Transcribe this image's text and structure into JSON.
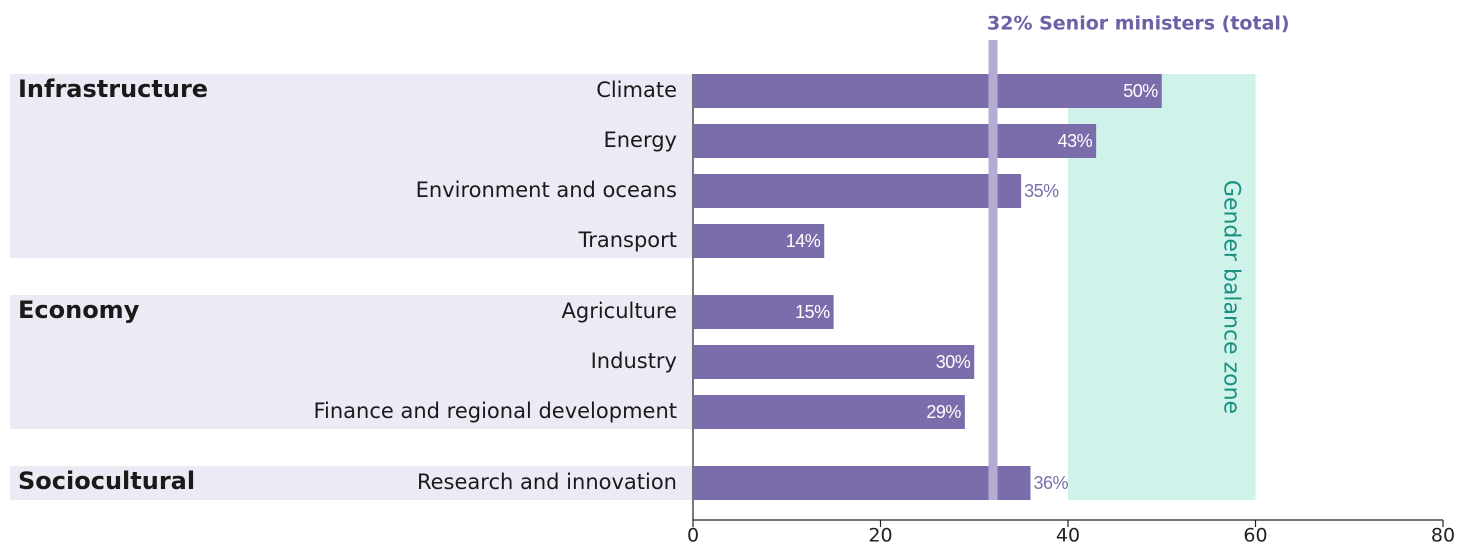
{
  "chart_data": {
    "type": "bar",
    "orientation": "horizontal",
    "color": "#7b6dab",
    "groups": [
      {
        "name": "Infrastructure",
        "categories": [
          "Climate",
          "Energy",
          "Environment and oceans",
          "Transport"
        ],
        "values": [
          50,
          43,
          35,
          14
        ],
        "value_labels": [
          "50%",
          "43%",
          "35%",
          "14%"
        ]
      },
      {
        "name": "Economy",
        "categories": [
          "Agriculture",
          "Industry",
          "Finance and regional development"
        ],
        "values": [
          15,
          30,
          29
        ],
        "value_labels": [
          "15%",
          "30%",
          "29%"
        ]
      },
      {
        "name": "Sociocultural",
        "categories": [
          "Research and innovation"
        ],
        "values": [
          36
        ],
        "value_labels": [
          "36%"
        ]
      }
    ],
    "xlim": [
      0,
      80
    ],
    "xticks": [
      0,
      20,
      40,
      60,
      80
    ],
    "reference_line": {
      "value": 32,
      "label": "32% Senior ministers (total)",
      "color": "#b5acd4",
      "label_color": "#6e5fa6"
    },
    "zone": {
      "range": [
        40,
        60
      ],
      "label": "Gender balance zone",
      "color": "#cff2ea",
      "label_color": "#1a9080"
    }
  }
}
